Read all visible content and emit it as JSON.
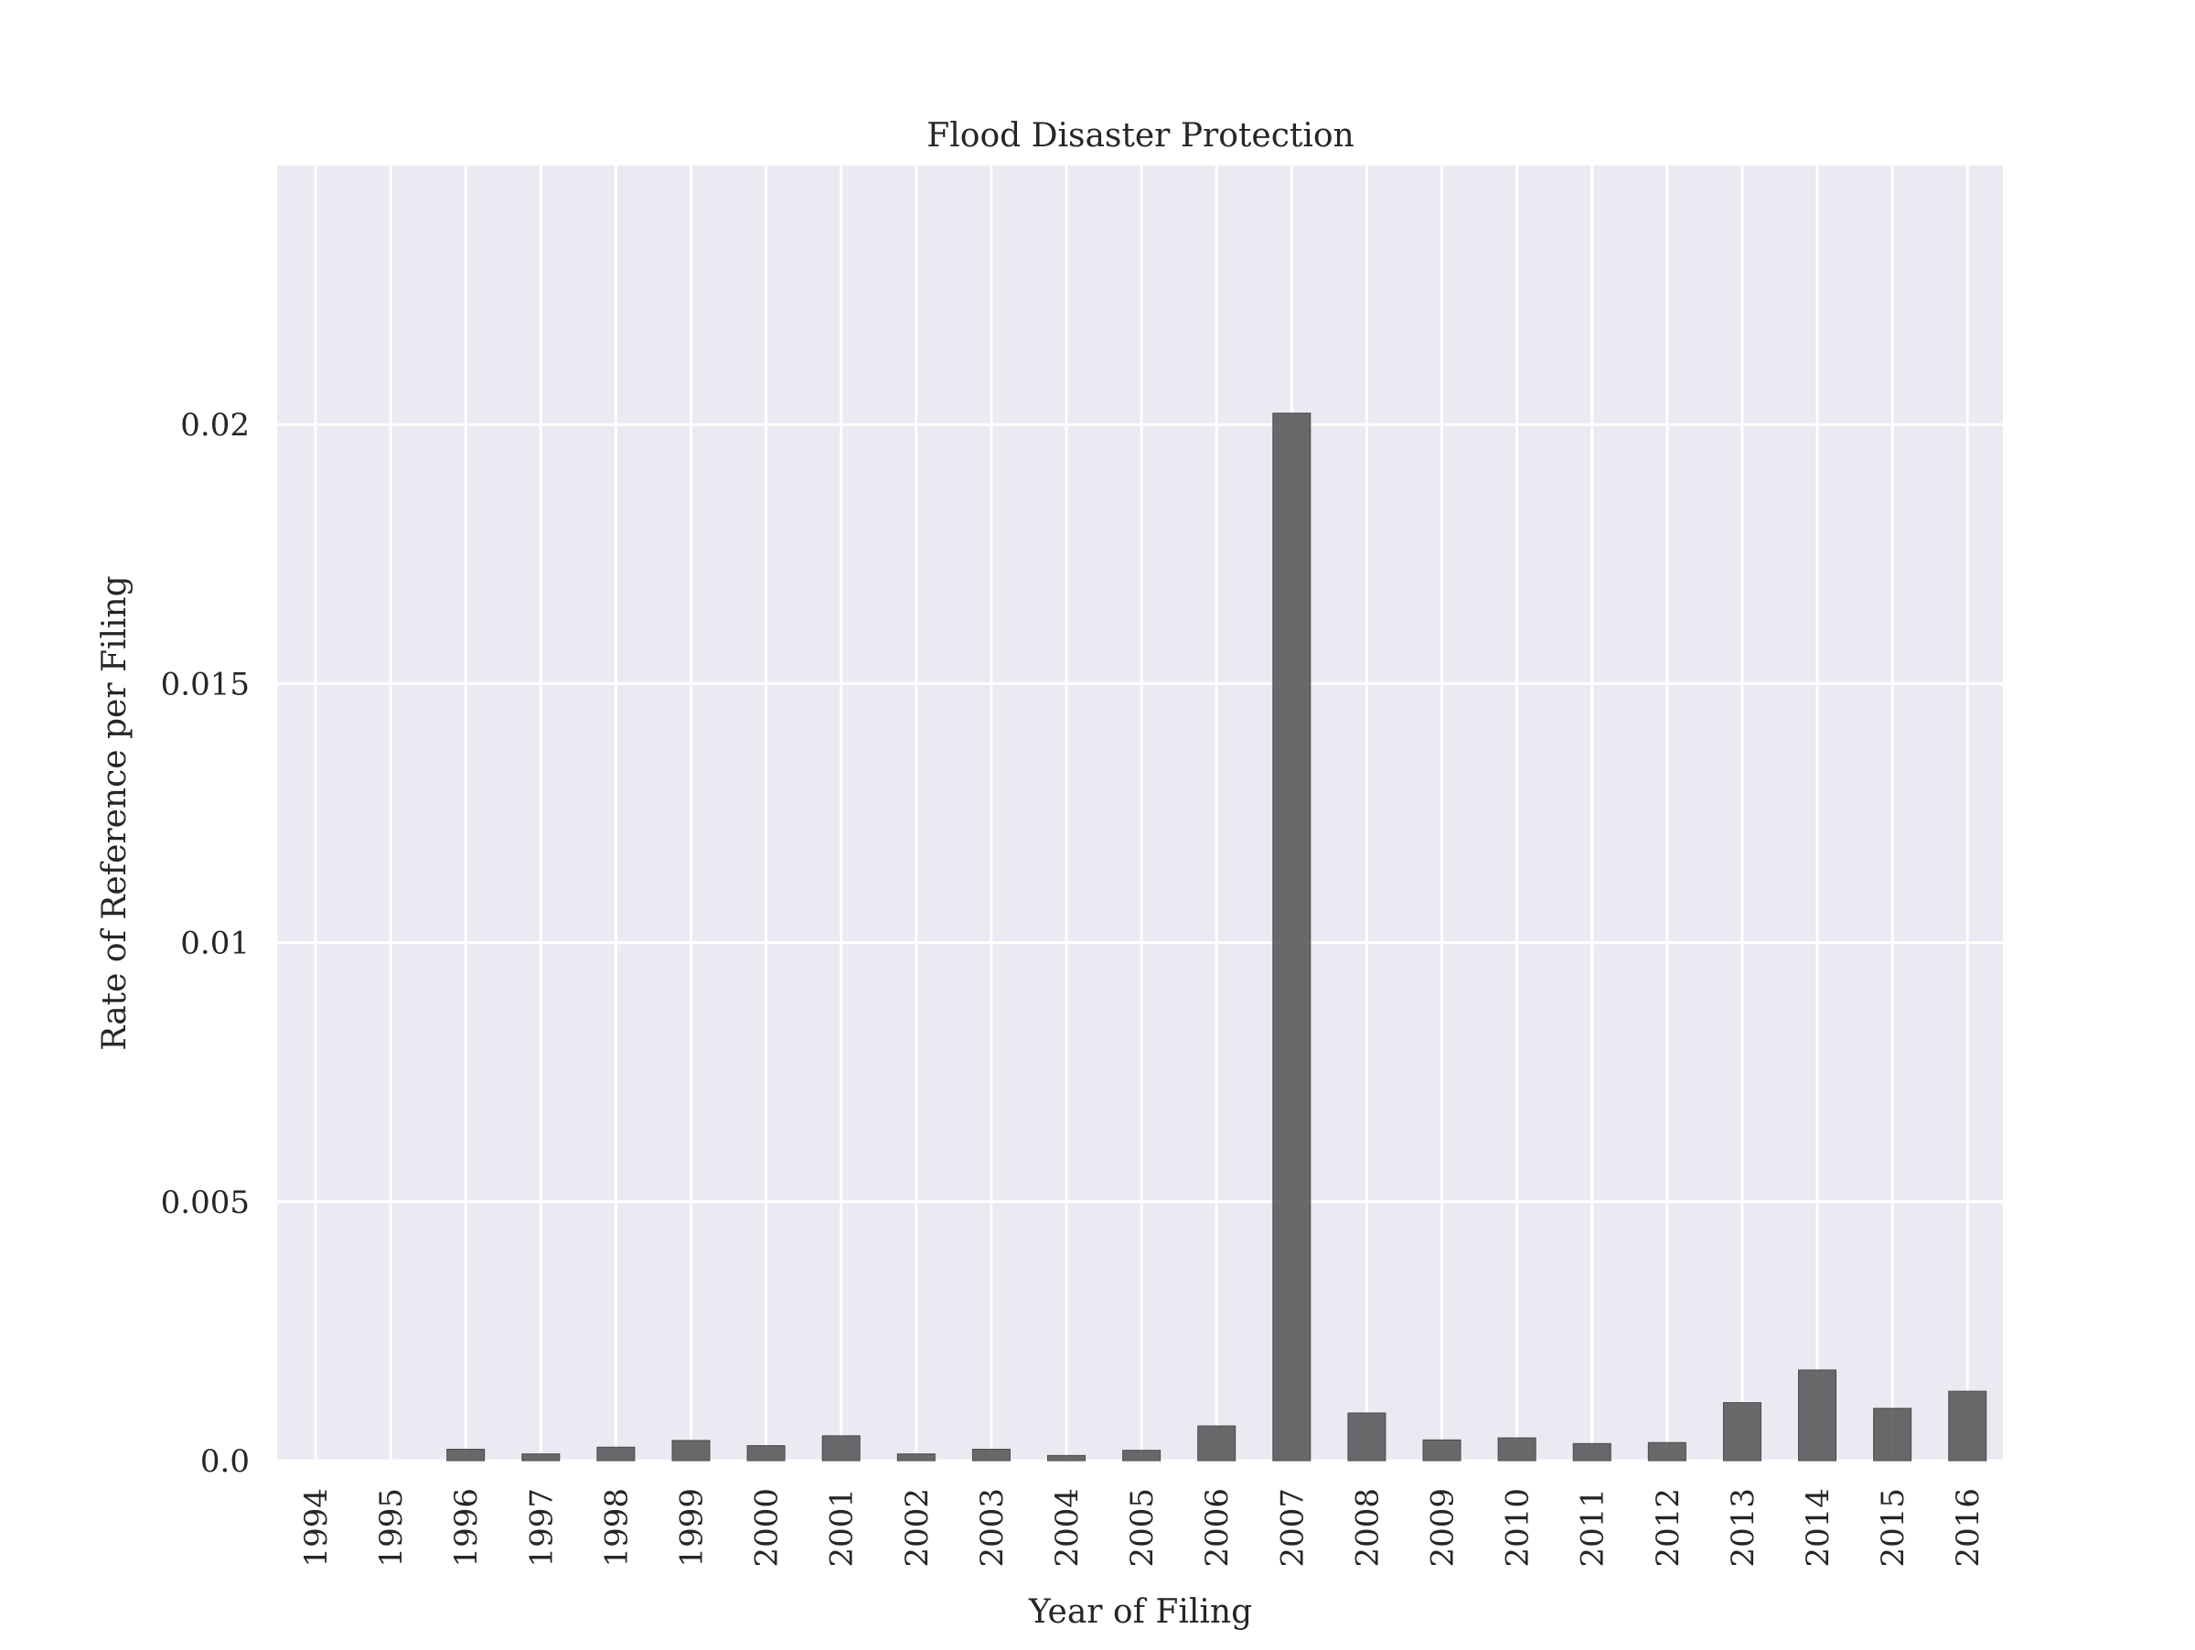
{
  "chart_data": {
    "type": "bar",
    "title": "Flood Disaster Protection",
    "xlabel": "Year of Filing",
    "ylabel": "Rate of Reference per Filing",
    "categories": [
      "1994",
      "1995",
      "1996",
      "1997",
      "1998",
      "1999",
      "2000",
      "2001",
      "2002",
      "2003",
      "2004",
      "2005",
      "2006",
      "2007",
      "2008",
      "2009",
      "2010",
      "2011",
      "2012",
      "2013",
      "2014",
      "2015",
      "2016"
    ],
    "values": [
      0.0,
      0.0,
      0.00022,
      0.00013,
      0.00026,
      0.00039,
      0.00029,
      0.00048,
      0.00013,
      0.00022,
      0.0001,
      0.0002,
      0.00067,
      0.02022,
      0.00092,
      0.0004,
      0.00044,
      0.00033,
      0.00035,
      0.00112,
      0.00175,
      0.00101,
      0.00134
    ],
    "yticks": [
      0.0,
      0.005,
      0.01,
      0.015,
      0.02
    ],
    "ytick_labels": [
      "0.0",
      "0.005",
      "0.01",
      "0.015",
      "0.02"
    ],
    "ylim": [
      0,
      0.025
    ],
    "grid": true,
    "colors": {
      "bar": "#5a5a5b",
      "background": "#eaeaf2",
      "grid": "#ffffff"
    }
  }
}
